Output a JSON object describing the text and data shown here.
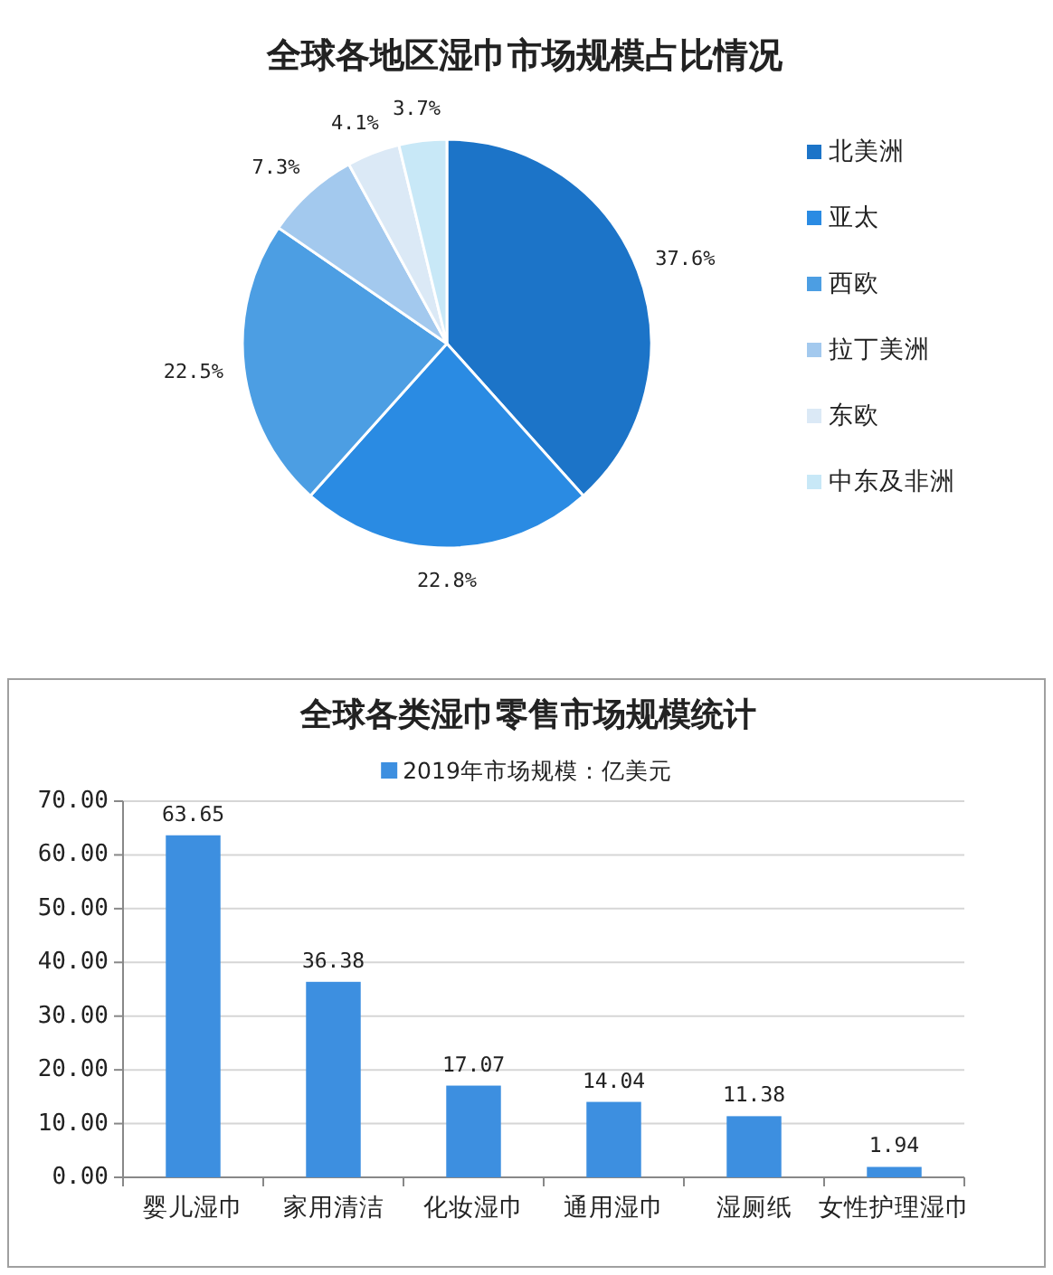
{
  "chart_data": [
    {
      "type": "pie",
      "title": "全球各地区湿巾市场规模占比情况",
      "categories": [
        "北美洲",
        "亚太",
        "西欧",
        "拉丁美洲",
        "东欧",
        "中东及非洲"
      ],
      "values": [
        37.6,
        22.8,
        22.5,
        7.3,
        4.1,
        3.7
      ],
      "colors": [
        "#1c74c8",
        "#2a8be3",
        "#4c9ee3",
        "#a3c9ee",
        "#dbe9f6",
        "#c8e8f7"
      ],
      "value_labels": [
        "37.6%",
        "22.8%",
        "22.5%",
        "7.3%",
        "4.1%",
        "3.7%"
      ],
      "legend": "right"
    },
    {
      "type": "bar",
      "title": "全球各类湿巾零售市场规模统计",
      "categories": [
        "婴儿湿巾",
        "家用清洁",
        "化妆湿巾",
        "通用湿巾",
        "湿厕纸",
        "女性护理湿巾"
      ],
      "series": [
        {
          "name": "2019年市场规模：亿美元",
          "color": "#3d8fe0",
          "values": [
            63.65,
            36.38,
            17.07,
            14.04,
            11.38,
            1.94
          ]
        }
      ],
      "ylim": [
        0,
        70
      ],
      "yticks": [
        {
          "value": 0,
          "label": "0.00"
        },
        {
          "value": 10,
          "label": "10.00"
        },
        {
          "value": 20,
          "label": "20.00"
        },
        {
          "value": 30,
          "label": "30.00"
        },
        {
          "value": 40,
          "label": "40.00"
        },
        {
          "value": 50,
          "label": "50.00"
        },
        {
          "value": 60,
          "label": "60.00"
        },
        {
          "value": 70,
          "label": "70.00"
        }
      ],
      "grid": "y",
      "legend": "top",
      "data_labels": true
    }
  ]
}
